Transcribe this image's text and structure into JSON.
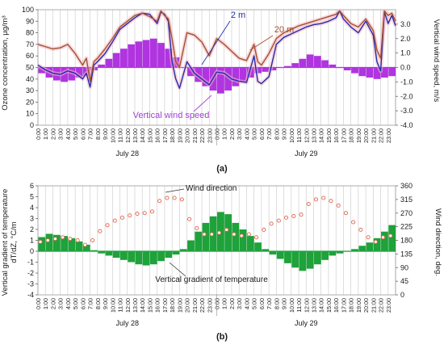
{
  "colors": {
    "ozone_2m": "#1f2db0",
    "ozone_20m": "#a0522d",
    "ozone_halo": "#f7b7c2",
    "vertical_wind": "#b034e0",
    "temperature_gradient": "#1ea23a",
    "wind_direction_marker": "#e0604a",
    "grid": "#c8c8c8",
    "axis_text": "#1a1a1a",
    "label_purple": "#a23fd6"
  },
  "panel_labels": {
    "a": "(a)",
    "b": "(b)"
  },
  "chart_data": [
    {
      "type": "line",
      "panel": "a",
      "title": "",
      "ylabel": "Ozone concentration, µg/m³",
      "y2label": "Vertical wind speed, m/s",
      "ylim": [
        0,
        100
      ],
      "y2lim": [
        -4.0,
        4.0
      ],
      "yticks": [
        0,
        10,
        20,
        30,
        40,
        50,
        60,
        70,
        80,
        90,
        100
      ],
      "y2ticks": [
        "-4.0",
        "-3.0",
        "-2.0",
        "-1.0",
        "0.0",
        "1.0",
        "2.0",
        "3.0"
      ],
      "x_hours": [
        "0:00",
        "1:00",
        "2:00",
        "3:00",
        "4:00",
        "5:00",
        "6:00",
        "7:00",
        "8:00",
        "9:00",
        "10:00",
        "11:00",
        "12:00",
        "13:00",
        "14:00",
        "15:00",
        "16:00",
        "17:00",
        "18:00",
        "19:00",
        "20:00",
        "21:00",
        "22:00",
        "23:00"
      ],
      "days": [
        "July 28",
        "July 29"
      ],
      "grid": "vertical",
      "annotations": [
        "2 m",
        "20 m",
        "Vertical wind speed"
      ],
      "series": [
        {
          "name": "2 m",
          "axis": "left",
          "style": "line",
          "x": [
            0,
            1,
            2,
            3,
            4,
            5,
            6,
            6.5,
            7,
            7.5,
            8,
            9,
            10,
            11,
            12,
            13,
            14,
            15,
            16,
            16.5,
            17,
            17.5,
            18,
            18.5,
            19,
            20,
            21,
            22,
            23,
            24,
            25,
            26,
            27,
            28,
            29,
            29.5,
            30,
            31,
            32,
            33,
            34,
            35,
            36,
            37,
            38,
            39,
            40,
            40.5,
            41,
            42,
            43,
            44,
            45,
            45.5,
            46,
            46.5,
            47,
            47.5,
            48
          ],
          "y": [
            52,
            48,
            45,
            44,
            47,
            45,
            40,
            45,
            33,
            52,
            55,
            62,
            72,
            83,
            88,
            93,
            97,
            96,
            88,
            98,
            96,
            90,
            55,
            40,
            32,
            55,
            45,
            40,
            35,
            46,
            45,
            40,
            38,
            37,
            60,
            38,
            36,
            42,
            70,
            76,
            79,
            82,
            85,
            87,
            88,
            90,
            93,
            99,
            92,
            85,
            80,
            90,
            78,
            55,
            47,
            98,
            88,
            95,
            86
          ]
        },
        {
          "name": "20 m",
          "axis": "left",
          "style": "line",
          "x": [
            0,
            1,
            2,
            3,
            4,
            5,
            6,
            6.5,
            7,
            7.5,
            8,
            9,
            10,
            11,
            12,
            13,
            14,
            15,
            16,
            16.5,
            17,
            17.5,
            18,
            18.5,
            19,
            20,
            21,
            22,
            23,
            24,
            25,
            26,
            27,
            28,
            29,
            29.5,
            30,
            31,
            32,
            33,
            34,
            35,
            36,
            37,
            38,
            39,
            40,
            40.5,
            41,
            42,
            43,
            44,
            45,
            45.5,
            46,
            46.5,
            47,
            47.5,
            48
          ],
          "y": [
            70,
            68,
            66,
            67,
            70,
            62,
            52,
            58,
            38,
            55,
            58,
            66,
            75,
            85,
            90,
            95,
            97,
            94,
            90,
            99,
            95,
            92,
            75,
            55,
            50,
            80,
            78,
            72,
            60,
            75,
            70,
            64,
            58,
            56,
            70,
            55,
            52,
            62,
            75,
            80,
            83,
            86,
            88,
            90,
            92,
            94,
            96,
            99,
            95,
            88,
            85,
            92,
            82,
            65,
            58,
            99,
            95,
            97,
            90
          ]
        },
        {
          "name": "Vertical wind speed",
          "axis": "right",
          "style": "bars",
          "x": [
            0,
            1,
            2,
            3,
            4,
            5,
            6,
            7,
            8,
            9,
            10,
            11,
            12,
            13,
            14,
            15,
            16,
            17,
            18,
            19,
            20,
            21,
            22,
            23,
            24,
            25,
            26,
            27,
            28,
            29,
            30,
            31,
            32,
            33,
            34,
            35,
            36,
            37,
            38,
            39,
            40,
            41,
            42,
            43,
            44,
            45,
            46,
            47
          ],
          "y": [
            -0.4,
            -0.7,
            -0.9,
            -1.0,
            -0.9,
            -0.7,
            -0.6,
            -0.2,
            0.2,
            0.6,
            1.0,
            1.3,
            1.6,
            1.8,
            1.9,
            2.0,
            1.7,
            1.3,
            0.7,
            0.0,
            -0.6,
            -1.0,
            -1.3,
            -1.6,
            -1.8,
            -1.6,
            -1.3,
            -1.0,
            -0.7,
            -0.4,
            -0.3,
            -0.2,
            0.0,
            0.1,
            0.3,
            0.6,
            0.9,
            0.8,
            0.5,
            0.2,
            0.0,
            -0.2,
            -0.4,
            -0.6,
            -0.7,
            -0.8,
            -0.7,
            -0.6
          ]
        }
      ]
    },
    {
      "type": "bar",
      "panel": "b",
      "title": "",
      "ylabel": "Vertical gradient of temperature dT/dZ, °C/m",
      "y2label": "Wind direction, deg.",
      "ylim": [
        -4,
        6
      ],
      "y2lim": [
        0,
        360
      ],
      "yticks": [
        -4,
        -3,
        -2,
        -1,
        0,
        1,
        2,
        3,
        4,
        5,
        6
      ],
      "y2ticks": [
        0,
        45,
        90,
        135,
        180,
        225,
        270,
        315,
        360
      ],
      "x_hours": [
        "0:00",
        "1:00",
        "2:00",
        "3:00",
        "4:00",
        "5:00",
        "6:00",
        "7:00",
        "8:00",
        "9:00",
        "10:00",
        "11:00",
        "12:00",
        "13:00",
        "14:00",
        "15:00",
        "16:00",
        "17:00",
        "18:00",
        "19:00",
        "20:00",
        "21:00",
        "22:00",
        "23:00"
      ],
      "days": [
        "July 28",
        "July 29"
      ],
      "grid": "vertical",
      "annotations": [
        "Wind direction",
        "Vertical gradient of temperature"
      ],
      "series": [
        {
          "name": "Vertical gradient of temperature",
          "axis": "left",
          "style": "bars",
          "x": [
            0,
            1,
            2,
            3,
            4,
            5,
            6,
            7,
            8,
            9,
            10,
            11,
            12,
            13,
            14,
            15,
            16,
            17,
            18,
            19,
            20,
            21,
            22,
            23,
            24,
            25,
            26,
            27,
            28,
            29,
            30,
            31,
            32,
            33,
            34,
            35,
            36,
            37,
            38,
            39,
            40,
            41,
            42,
            43,
            44,
            45,
            46,
            47
          ],
          "y": [
            1.3,
            1.6,
            1.5,
            1.4,
            1.2,
            0.9,
            0.6,
            0.1,
            -0.2,
            -0.4,
            -0.6,
            -0.8,
            -1.0,
            -1.2,
            -1.3,
            -1.2,
            -0.9,
            -0.6,
            -0.3,
            0.2,
            1.0,
            1.8,
            2.6,
            3.2,
            3.6,
            3.4,
            2.6,
            2.0,
            1.4,
            0.8,
            0.2,
            -0.3,
            -0.7,
            -1.1,
            -1.5,
            -1.8,
            -1.6,
            -1.2,
            -0.8,
            -0.4,
            -0.2,
            0.0,
            0.2,
            0.5,
            0.8,
            1.2,
            1.8,
            2.4
          ]
        },
        {
          "name": "Wind direction",
          "axis": "right",
          "style": "markers",
          "x": [
            0,
            1,
            2,
            3,
            4,
            5,
            6,
            7,
            8,
            9,
            10,
            11,
            12,
            13,
            14,
            15,
            16,
            17,
            18,
            19,
            20,
            21,
            22,
            23,
            24,
            25,
            26,
            27,
            28,
            29,
            30,
            31,
            32,
            33,
            34,
            35,
            36,
            37,
            38,
            39,
            40,
            41,
            42,
            43,
            44,
            45,
            46,
            47
          ],
          "y": [
            175,
            180,
            185,
            190,
            185,
            180,
            165,
            180,
            210,
            230,
            245,
            255,
            262,
            268,
            270,
            275,
            310,
            320,
            320,
            315,
            250,
            220,
            200,
            200,
            205,
            215,
            200,
            195,
            200,
            190,
            215,
            235,
            245,
            255,
            260,
            265,
            300,
            315,
            320,
            310,
            295,
            270,
            240,
            215,
            190,
            175,
            190,
            195
          ]
        }
      ]
    }
  ]
}
